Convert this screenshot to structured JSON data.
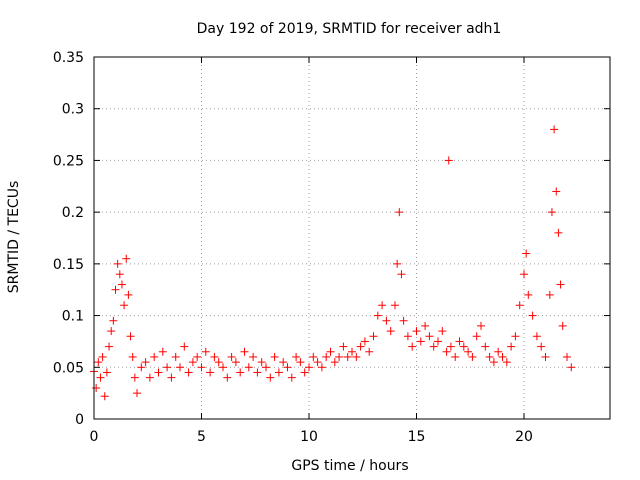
{
  "chart_data": {
    "type": "scatter",
    "title": "Day 192 of 2019, SRMTID for receiver adh1",
    "xlabel": "GPS time / hours",
    "ylabel": "SRMTID / TECUs",
    "xlim": [
      0,
      24
    ],
    "ylim": [
      0,
      0.35
    ],
    "xticks": [
      0,
      5,
      10,
      15,
      20
    ],
    "xtick_labels": [
      "0",
      "5",
      "10",
      "15",
      "20"
    ],
    "yticks": [
      0,
      0.05,
      0.1,
      0.15,
      0.2,
      0.25,
      0.3,
      0.35
    ],
    "ytick_labels": [
      "0",
      "0.05",
      "0.1",
      "0.15",
      "0.2",
      "0.25",
      "0.3",
      "0.35"
    ],
    "grid": true,
    "marker": "+",
    "marker_color": "#ff0000",
    "series": [
      {
        "name": "SRMTID",
        "points": [
          [
            0.0,
            0.046
          ],
          [
            0.1,
            0.03
          ],
          [
            0.2,
            0.055
          ],
          [
            0.3,
            0.04
          ],
          [
            0.4,
            0.06
          ],
          [
            0.5,
            0.022
          ],
          [
            0.6,
            0.045
          ],
          [
            0.7,
            0.07
          ],
          [
            0.8,
            0.085
          ],
          [
            0.9,
            0.095
          ],
          [
            1.0,
            0.125
          ],
          [
            1.1,
            0.15
          ],
          [
            1.2,
            0.14
          ],
          [
            1.3,
            0.13
          ],
          [
            1.4,
            0.11
          ],
          [
            1.5,
            0.155
          ],
          [
            1.6,
            0.12
          ],
          [
            1.7,
            0.08
          ],
          [
            1.8,
            0.06
          ],
          [
            1.9,
            0.04
          ],
          [
            2.0,
            0.025
          ],
          [
            2.2,
            0.05
          ],
          [
            2.4,
            0.055
          ],
          [
            2.6,
            0.04
          ],
          [
            2.8,
            0.06
          ],
          [
            3.0,
            0.045
          ],
          [
            3.2,
            0.065
          ],
          [
            3.4,
            0.05
          ],
          [
            3.6,
            0.04
          ],
          [
            3.8,
            0.06
          ],
          [
            4.0,
            0.05
          ],
          [
            4.2,
            0.07
          ],
          [
            4.4,
            0.045
          ],
          [
            4.6,
            0.055
          ],
          [
            4.8,
            0.06
          ],
          [
            5.0,
            0.05
          ],
          [
            5.2,
            0.065
          ],
          [
            5.4,
            0.045
          ],
          [
            5.6,
            0.06
          ],
          [
            5.8,
            0.055
          ],
          [
            6.0,
            0.05
          ],
          [
            6.2,
            0.04
          ],
          [
            6.4,
            0.06
          ],
          [
            6.6,
            0.055
          ],
          [
            6.8,
            0.045
          ],
          [
            7.0,
            0.065
          ],
          [
            7.2,
            0.05
          ],
          [
            7.4,
            0.06
          ],
          [
            7.6,
            0.045
          ],
          [
            7.8,
            0.055
          ],
          [
            8.0,
            0.05
          ],
          [
            8.2,
            0.04
          ],
          [
            8.4,
            0.06
          ],
          [
            8.6,
            0.045
          ],
          [
            8.8,
            0.055
          ],
          [
            9.0,
            0.05
          ],
          [
            9.2,
            0.04
          ],
          [
            9.4,
            0.06
          ],
          [
            9.6,
            0.055
          ],
          [
            9.8,
            0.045
          ],
          [
            10.0,
            0.05
          ],
          [
            10.2,
            0.06
          ],
          [
            10.4,
            0.055
          ],
          [
            10.6,
            0.05
          ],
          [
            10.8,
            0.06
          ],
          [
            11.0,
            0.065
          ],
          [
            11.2,
            0.055
          ],
          [
            11.4,
            0.06
          ],
          [
            11.6,
            0.07
          ],
          [
            11.8,
            0.06
          ],
          [
            12.0,
            0.065
          ],
          [
            12.2,
            0.06
          ],
          [
            12.4,
            0.07
          ],
          [
            12.6,
            0.075
          ],
          [
            12.8,
            0.065
          ],
          [
            13.0,
            0.08
          ],
          [
            13.2,
            0.1
          ],
          [
            13.4,
            0.11
          ],
          [
            13.6,
            0.095
          ],
          [
            13.8,
            0.085
          ],
          [
            14.0,
            0.11
          ],
          [
            14.1,
            0.15
          ],
          [
            14.2,
            0.2
          ],
          [
            14.3,
            0.14
          ],
          [
            14.4,
            0.095
          ],
          [
            14.6,
            0.08
          ],
          [
            14.8,
            0.07
          ],
          [
            15.0,
            0.085
          ],
          [
            15.2,
            0.075
          ],
          [
            15.4,
            0.09
          ],
          [
            15.6,
            0.08
          ],
          [
            15.8,
            0.07
          ],
          [
            16.0,
            0.075
          ],
          [
            16.2,
            0.085
          ],
          [
            16.4,
            0.065
          ],
          [
            16.6,
            0.07
          ],
          [
            16.8,
            0.06
          ],
          [
            17.0,
            0.075
          ],
          [
            17.2,
            0.07
          ],
          [
            17.4,
            0.065
          ],
          [
            17.6,
            0.06
          ],
          [
            17.8,
            0.08
          ],
          [
            18.0,
            0.09
          ],
          [
            18.2,
            0.07
          ],
          [
            18.4,
            0.06
          ],
          [
            18.6,
            0.055
          ],
          [
            18.8,
            0.065
          ],
          [
            19.0,
            0.06
          ],
          [
            19.2,
            0.055
          ],
          [
            19.4,
            0.07
          ],
          [
            19.6,
            0.08
          ],
          [
            19.8,
            0.11
          ],
          [
            20.0,
            0.14
          ],
          [
            20.1,
            0.16
          ],
          [
            20.2,
            0.12
          ],
          [
            20.4,
            0.1
          ],
          [
            20.6,
            0.08
          ],
          [
            20.8,
            0.07
          ],
          [
            21.0,
            0.06
          ],
          [
            21.2,
            0.12
          ],
          [
            21.3,
            0.2
          ],
          [
            21.4,
            0.28
          ],
          [
            21.5,
            0.22
          ],
          [
            21.6,
            0.18
          ],
          [
            21.7,
            0.13
          ],
          [
            21.8,
            0.09
          ],
          [
            22.0,
            0.06
          ],
          [
            22.2,
            0.05
          ]
        ]
      }
    ],
    "annotations": [
      {
        "x": 16.5,
        "y": 0.25,
        "label": ""
      }
    ]
  }
}
